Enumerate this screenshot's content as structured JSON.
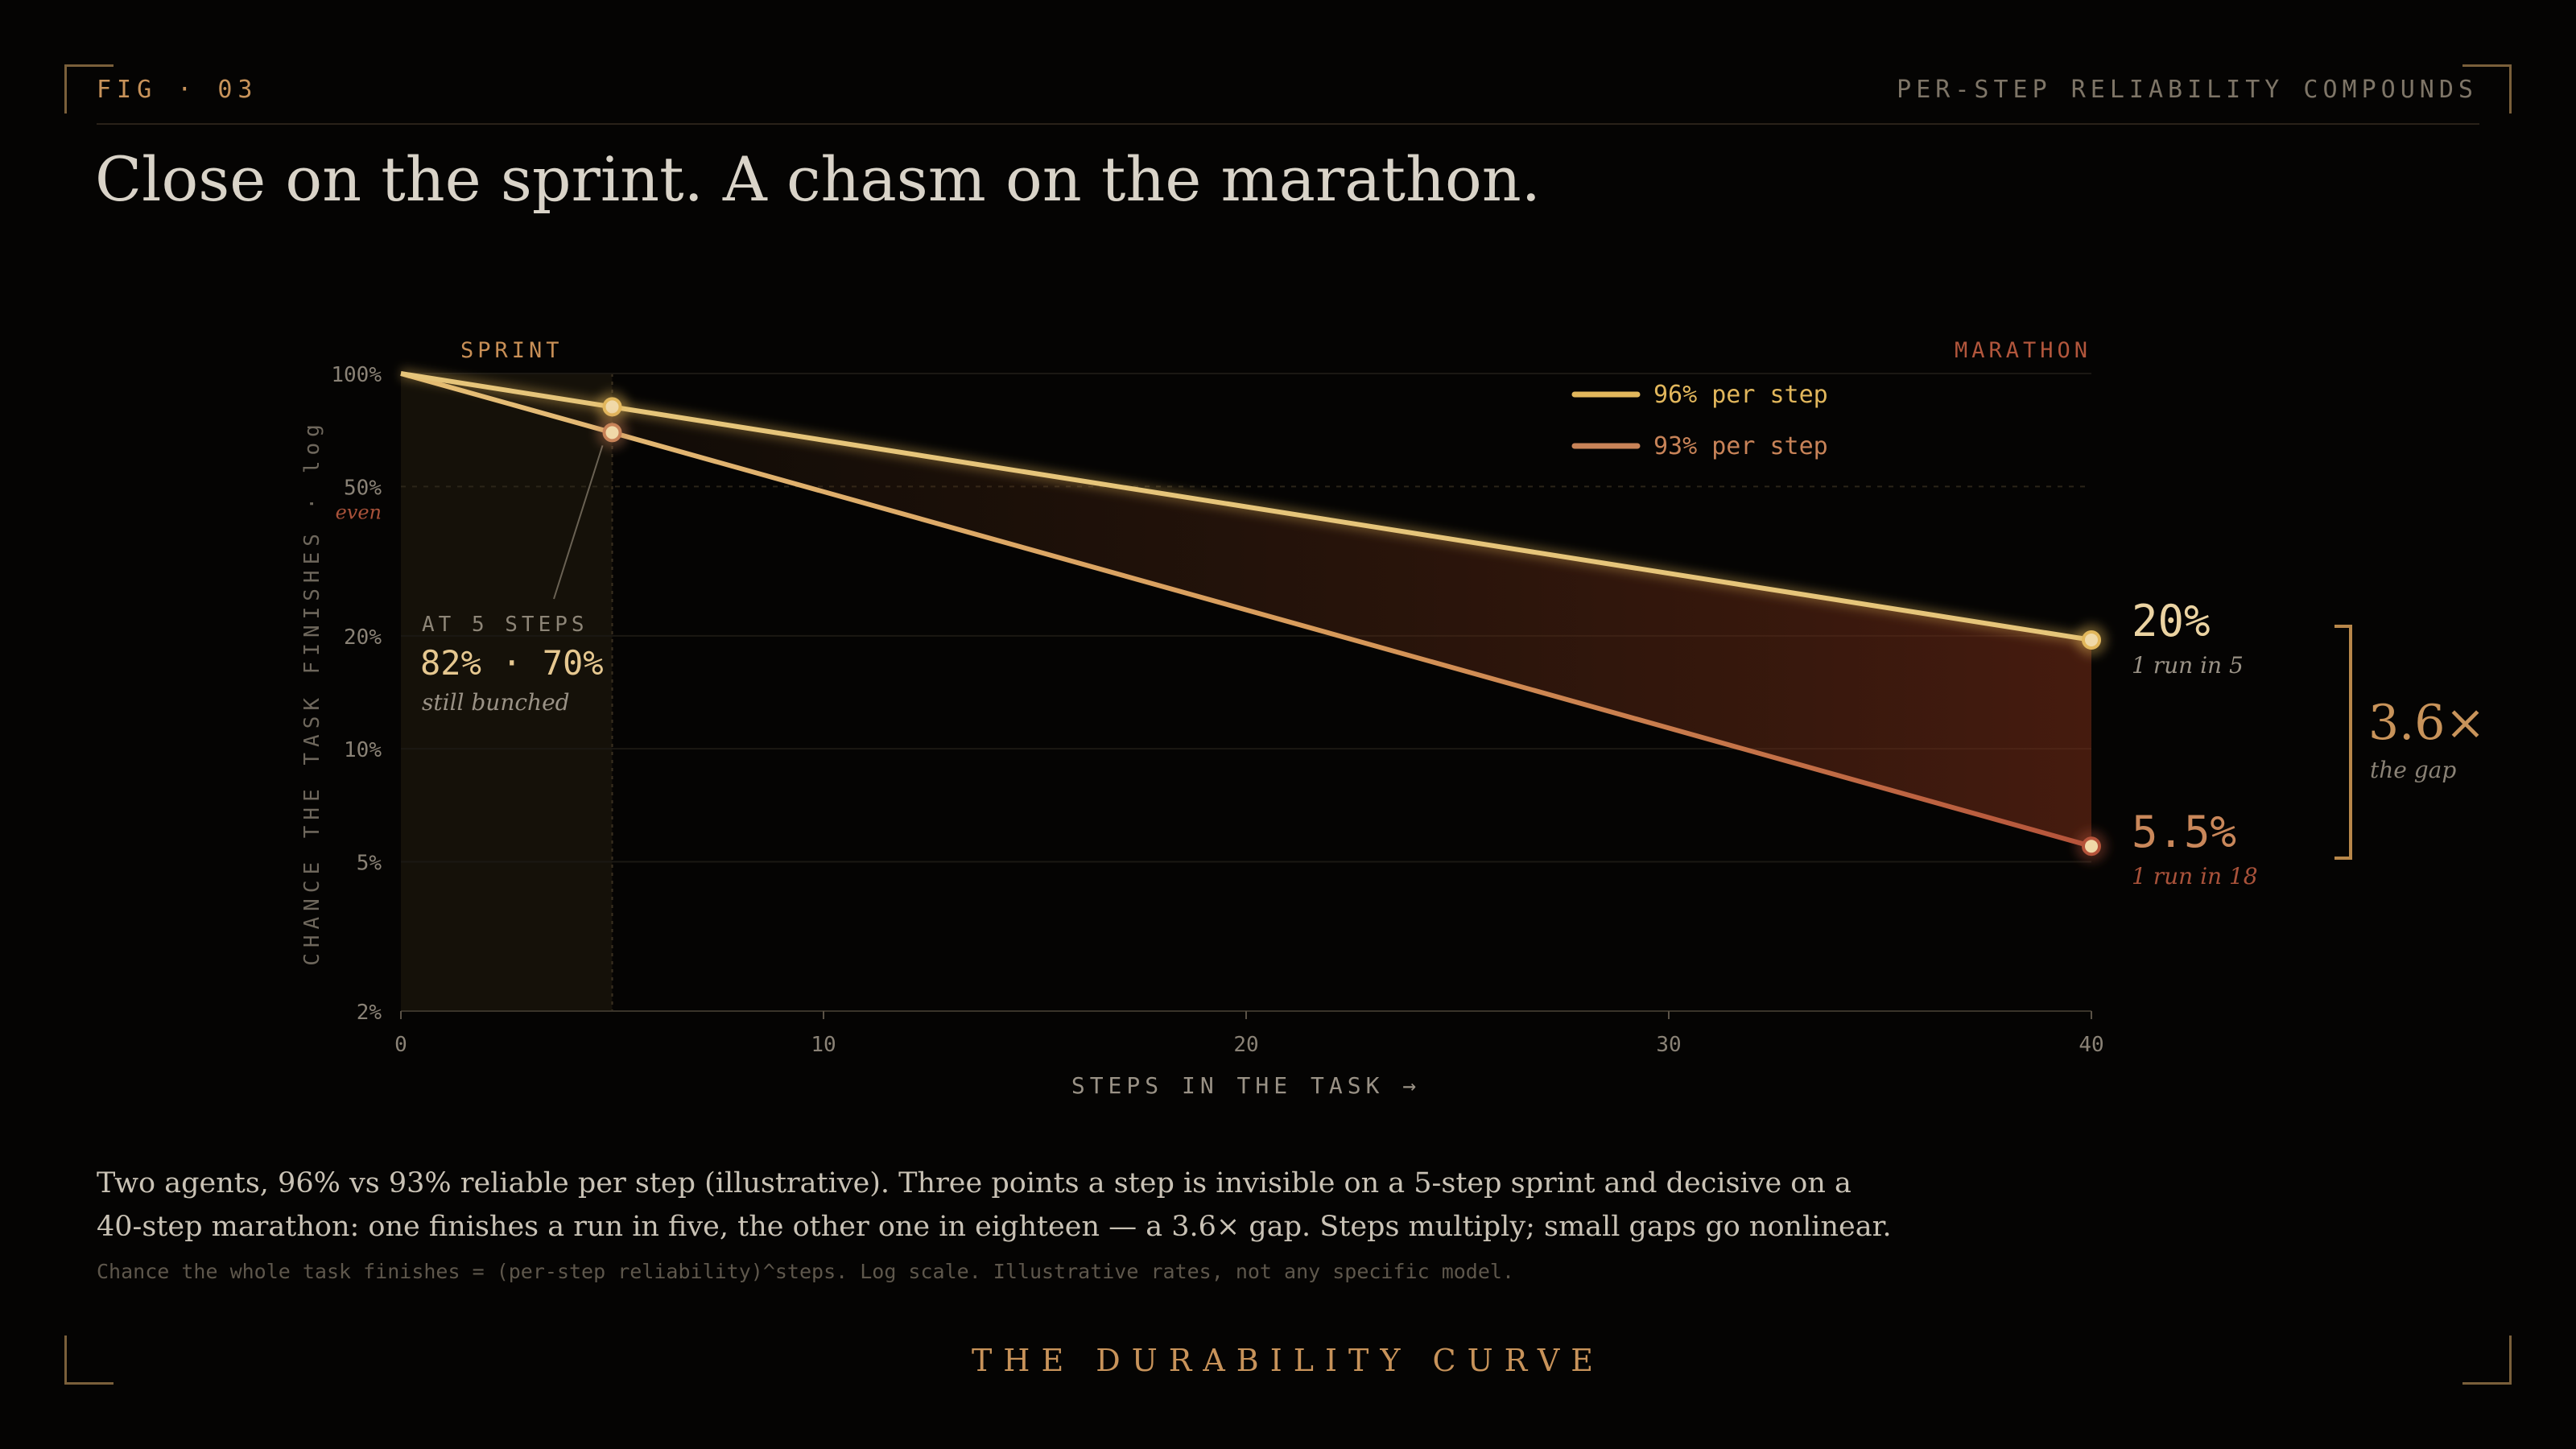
{
  "header": {
    "fig_label": "FIG · 03",
    "right_label": "PER-STEP RELIABILITY COMPOUNDS",
    "title": "Close on the sprint. A chasm on the marathon."
  },
  "chart_data": {
    "type": "line",
    "x_label": "STEPS IN THE TASK →",
    "y_label": "CHANCE THE TASK FINISHES · log",
    "y_scale": "log",
    "xlim": [
      0,
      40
    ],
    "ylim": [
      0.02,
      1
    ],
    "x_ticks": [
      0,
      10,
      20,
      30,
      40
    ],
    "x_tick_labels": [
      "0",
      "10",
      "20",
      "30",
      "40"
    ],
    "y_ticks": [
      1,
      0.5,
      0.2,
      0.1,
      0.05,
      0.02
    ],
    "y_tick_labels": [
      "100%",
      "50%",
      "20%",
      "10%",
      "5%",
      "2%"
    ],
    "y_tick_note": {
      "value": 0.5,
      "text": "even"
    },
    "regions": [
      {
        "label": "SPRINT",
        "from": 0,
        "to": 5
      },
      {
        "label": "MARATHON",
        "from": 5,
        "to": 40
      }
    ],
    "series": [
      {
        "name": "96% per step",
        "rate": 0.96,
        "color": "#e2b75c",
        "x": [
          0,
          5,
          40
        ],
        "y": [
          1.0,
          0.815,
          0.195
        ]
      },
      {
        "name": "93% per step",
        "rate": 0.93,
        "color": "#c88358",
        "x": [
          0,
          5,
          40
        ],
        "y": [
          1.0,
          0.696,
          0.055
        ]
      }
    ],
    "annotations": {
      "at5_title": "AT 5 STEPS",
      "at5_values": "82% · 70%",
      "at5_note": "still bunched",
      "end_96_value": "20%",
      "end_96_note": "1 run in 5",
      "end_93_value": "5.5%",
      "end_93_note": "1 run in 18",
      "gap_value": "3.6×",
      "gap_note": "the gap"
    },
    "grid": true,
    "legend_position": "top-right"
  },
  "caption": {
    "line1": "Two agents, 96% vs 93% reliable per step (illustrative). Three points a step is invisible on a 5-step sprint and decisive on a",
    "line2": "40-step marathon: one finishes a run in five, the other one in eighteen — a 3.6× gap. Steps multiply; small gaps go nonlinear.",
    "footnote": "Chance the whole task finishes = (per-step reliability)^steps. Log scale. Illustrative rates, not any specific model."
  },
  "footer": {
    "title": "THE DURABILITY CURVE"
  },
  "colors": {
    "accent": "#c8935a",
    "line_96": "#e2b75c",
    "line_93": "#c88358",
    "end_93_red": "#b5533a",
    "background": "#050403"
  }
}
